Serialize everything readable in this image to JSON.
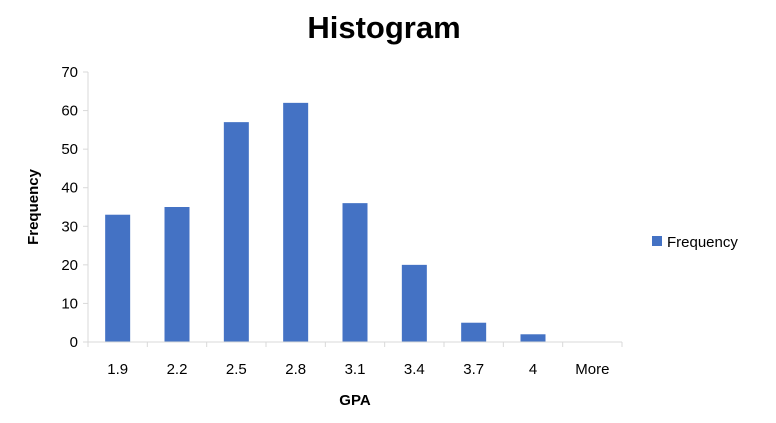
{
  "chart_data": {
    "type": "bar",
    "title": "Histogram",
    "xlabel": "GPA",
    "ylabel": "Frequency",
    "categories": [
      "1.9",
      "2.2",
      "2.5",
      "2.8",
      "3.1",
      "3.4",
      "3.7",
      "4",
      "More"
    ],
    "series": [
      {
        "name": "Frequency",
        "color": "#4472C4",
        "values": [
          33,
          35,
          57,
          62,
          36,
          20,
          5,
          2,
          0
        ]
      }
    ],
    "ylim": [
      0,
      70
    ],
    "yticks": [
      0,
      10,
      20,
      30,
      40,
      50,
      60,
      70
    ],
    "grid": false,
    "legend": "right"
  }
}
